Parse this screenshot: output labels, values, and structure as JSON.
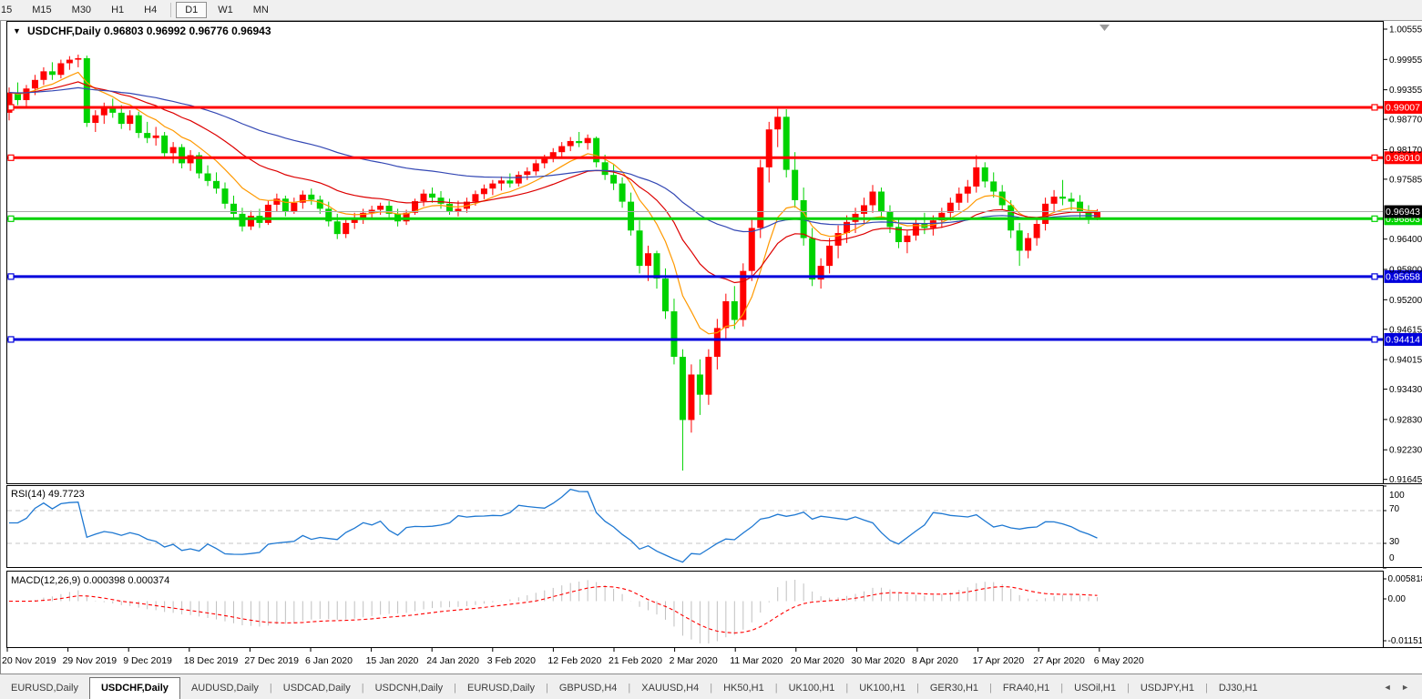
{
  "toolbar": {
    "timeframes": [
      "15",
      "M15",
      "M30",
      "H1",
      "H4",
      "D1",
      "W1",
      "MN"
    ],
    "active_timeframe": "D1",
    "separator_before": "D1"
  },
  "chart": {
    "symbol": "USDCHF,Daily",
    "ohlc": {
      "open": "0.96803",
      "high": "0.96992",
      "low": "0.96776",
      "close": "0.96943"
    },
    "title_display": "USDCHF,Daily  0.96803 0.96992 0.96776 0.96943"
  },
  "chart_data": {
    "type": "candlestick",
    "symbol": "USDCHF",
    "timeframe": "Daily",
    "bull_color": "#FF0000",
    "bear_color": "#00D300",
    "y_axis_ticks": [
      "1.00555",
      "0.99955",
      "0.99355",
      "0.98770",
      "0.98170",
      "0.97585",
      "0.96400",
      "0.95800",
      "0.95200",
      "0.94615",
      "0.94015",
      "0.93430",
      "0.92830",
      "0.92230",
      "0.91645"
    ],
    "x_axis_labels": [
      "20 Nov 2019",
      "29 Nov 2019",
      "9 Dec 2019",
      "18 Dec 2019",
      "27 Dec 2019",
      "6 Jan 2020",
      "15 Jan 2020",
      "24 Jan 2020",
      "3 Feb 2020",
      "12 Feb 2020",
      "21 Feb 2020",
      "2 Mar 2020",
      "11 Mar 2020",
      "20 Mar 2020",
      "30 Mar 2020",
      "8 Apr 2020",
      "17 Apr 2020",
      "27 Apr 2020",
      "6 May 2020"
    ],
    "horizontal_lines": [
      {
        "price": 0.99007,
        "label": "0.99007",
        "color": "#FF0000",
        "type": "resistance"
      },
      {
        "price": 0.9801,
        "label": "0.98010",
        "color": "#FF0000",
        "type": "resistance"
      },
      {
        "price": 0.96803,
        "label": "0.96803",
        "color": "#00D200",
        "type": "open-level"
      },
      {
        "price": 0.95658,
        "label": "0.95658",
        "color": "#0000DC",
        "type": "support"
      },
      {
        "price": 0.94414,
        "label": "0.94414",
        "color": "#0000DC",
        "type": "support"
      }
    ],
    "current_price_line": {
      "price": 0.96943,
      "label": "0.96943",
      "line_color": "#ABABAB",
      "badge_color": "#000000"
    },
    "moving_averages": [
      {
        "period": 9,
        "color": "#FF9900",
        "name": "fast"
      },
      {
        "period": 22,
        "color": "#DD0000",
        "name": "mid"
      },
      {
        "period": 55,
        "color": "#3448B4",
        "name": "slow"
      }
    ],
    "candles": [
      [
        0.989,
        0.994,
        0.9875,
        0.993
      ],
      [
        0.993,
        0.995,
        0.9905,
        0.9915
      ],
      [
        0.9915,
        0.9945,
        0.99,
        0.9938
      ],
      [
        0.9938,
        0.9965,
        0.9925,
        0.9955
      ],
      [
        0.9955,
        0.998,
        0.9945,
        0.9972
      ],
      [
        0.9972,
        0.999,
        0.9955,
        0.9965
      ],
      [
        0.9965,
        0.9995,
        0.9958,
        0.9988
      ],
      [
        0.9988,
        1.0002,
        0.9975,
        0.9995
      ],
      [
        0.9995,
        1.0005,
        0.998,
        0.9998
      ],
      [
        0.9998,
        1.0003,
        0.9862,
        0.987
      ],
      [
        0.987,
        0.9895,
        0.9852,
        0.9885
      ],
      [
        0.9885,
        0.991,
        0.9868,
        0.99
      ],
      [
        0.99,
        0.9918,
        0.988,
        0.989
      ],
      [
        0.989,
        0.9905,
        0.9858,
        0.9868
      ],
      [
        0.9868,
        0.9895,
        0.9855,
        0.9885
      ],
      [
        0.9885,
        0.9892,
        0.984,
        0.985
      ],
      [
        0.985,
        0.9872,
        0.983,
        0.984
      ],
      [
        0.984,
        0.9862,
        0.9825,
        0.9845
      ],
      [
        0.9845,
        0.9852,
        0.98,
        0.981
      ],
      [
        0.981,
        0.9832,
        0.979,
        0.9822
      ],
      [
        0.9822,
        0.9828,
        0.978,
        0.979
      ],
      [
        0.979,
        0.9816,
        0.9775,
        0.9806
      ],
      [
        0.9806,
        0.9812,
        0.976,
        0.977
      ],
      [
        0.977,
        0.9786,
        0.9745,
        0.9755
      ],
      [
        0.9755,
        0.9772,
        0.973,
        0.974
      ],
      [
        0.974,
        0.9752,
        0.97,
        0.971
      ],
      [
        0.971,
        0.9726,
        0.968,
        0.969
      ],
      [
        0.969,
        0.9702,
        0.9655,
        0.9665
      ],
      [
        0.9665,
        0.9696,
        0.9658,
        0.9686
      ],
      [
        0.9686,
        0.97,
        0.9662,
        0.9672
      ],
      [
        0.9672,
        0.9716,
        0.9668,
        0.9708
      ],
      [
        0.9708,
        0.973,
        0.9695,
        0.972
      ],
      [
        0.972,
        0.9726,
        0.9685,
        0.9695
      ],
      [
        0.9695,
        0.9722,
        0.969,
        0.9712
      ],
      [
        0.9712,
        0.9736,
        0.97,
        0.9728
      ],
      [
        0.9728,
        0.974,
        0.9708,
        0.9718
      ],
      [
        0.9718,
        0.9726,
        0.969,
        0.97
      ],
      [
        0.97,
        0.9714,
        0.9665,
        0.9675
      ],
      [
        0.9675,
        0.969,
        0.964,
        0.965
      ],
      [
        0.965,
        0.968,
        0.9642,
        0.9672
      ],
      [
        0.9672,
        0.9692,
        0.966,
        0.9682
      ],
      [
        0.9682,
        0.97,
        0.967,
        0.9692
      ],
      [
        0.9692,
        0.9706,
        0.968,
        0.9698
      ],
      [
        0.9698,
        0.9712,
        0.9688,
        0.9706
      ],
      [
        0.9706,
        0.9715,
        0.9682,
        0.969
      ],
      [
        0.969,
        0.97,
        0.9665,
        0.9675
      ],
      [
        0.9675,
        0.9698,
        0.9668,
        0.9692
      ],
      [
        0.9692,
        0.972,
        0.9688,
        0.9715
      ],
      [
        0.9715,
        0.9738,
        0.9705,
        0.973
      ],
      [
        0.973,
        0.9742,
        0.9712,
        0.9722
      ],
      [
        0.9722,
        0.9735,
        0.97,
        0.971
      ],
      [
        0.971,
        0.972,
        0.9688,
        0.9695
      ],
      [
        0.9695,
        0.9716,
        0.9685,
        0.97
      ],
      [
        0.97,
        0.9722,
        0.9692,
        0.9714
      ],
      [
        0.9714,
        0.9736,
        0.9706,
        0.9729
      ],
      [
        0.9729,
        0.9748,
        0.9719,
        0.974
      ],
      [
        0.974,
        0.9757,
        0.9727,
        0.975
      ],
      [
        0.975,
        0.9764,
        0.9736,
        0.9756
      ],
      [
        0.9756,
        0.977,
        0.9742,
        0.975
      ],
      [
        0.975,
        0.9774,
        0.9744,
        0.9767
      ],
      [
        0.9767,
        0.9782,
        0.9757,
        0.9774
      ],
      [
        0.9774,
        0.9797,
        0.9766,
        0.979
      ],
      [
        0.979,
        0.9807,
        0.978,
        0.98
      ],
      [
        0.98,
        0.982,
        0.9792,
        0.9812
      ],
      [
        0.9812,
        0.9832,
        0.9802,
        0.9824
      ],
      [
        0.9824,
        0.9842,
        0.9814,
        0.9834
      ],
      [
        0.9834,
        0.9852,
        0.9822,
        0.983
      ],
      [
        0.983,
        0.9847,
        0.9817,
        0.984
      ],
      [
        0.984,
        0.9843,
        0.9782,
        0.9792
      ],
      [
        0.9792,
        0.9807,
        0.9757,
        0.9767
      ],
      [
        0.9767,
        0.9787,
        0.9737,
        0.975
      ],
      [
        0.975,
        0.9762,
        0.9702,
        0.9714
      ],
      [
        0.9714,
        0.9732,
        0.9647,
        0.9657
      ],
      [
        0.9657,
        0.9677,
        0.9572,
        0.9587
      ],
      [
        0.9587,
        0.9627,
        0.9557,
        0.9612
      ],
      [
        0.9612,
        0.9617,
        0.9542,
        0.9562
      ],
      [
        0.9562,
        0.9582,
        0.9482,
        0.9497
      ],
      [
        0.9497,
        0.9522,
        0.9392,
        0.9407
      ],
      [
        0.9407,
        0.9422,
        0.9182,
        0.9282
      ],
      [
        0.9282,
        0.9392,
        0.9257,
        0.9372
      ],
      [
        0.9372,
        0.9402,
        0.9292,
        0.9332
      ],
      [
        0.9332,
        0.9422,
        0.9312,
        0.9407
      ],
      [
        0.9407,
        0.9482,
        0.9382,
        0.9464
      ],
      [
        0.9464,
        0.9532,
        0.9442,
        0.9517
      ],
      [
        0.9517,
        0.9547,
        0.9462,
        0.948
      ],
      [
        0.948,
        0.9592,
        0.9467,
        0.9577
      ],
      [
        0.9577,
        0.9682,
        0.9557,
        0.9662
      ],
      [
        0.9662,
        0.9797,
        0.9642,
        0.9782
      ],
      [
        0.9782,
        0.9872,
        0.9752,
        0.9857
      ],
      [
        0.9857,
        0.9901,
        0.9822,
        0.9882
      ],
      [
        0.9882,
        0.9897,
        0.9762,
        0.9777
      ],
      [
        0.9777,
        0.9812,
        0.9702,
        0.9717
      ],
      [
        0.9717,
        0.9742,
        0.9627,
        0.9642
      ],
      [
        0.9642,
        0.9662,
        0.9547,
        0.956
      ],
      [
        0.956,
        0.9602,
        0.9542,
        0.9587
      ],
      [
        0.9587,
        0.9642,
        0.9572,
        0.9627
      ],
      [
        0.9627,
        0.9667,
        0.9602,
        0.9652
      ],
      [
        0.9652,
        0.9687,
        0.9632,
        0.9674
      ],
      [
        0.9674,
        0.9702,
        0.9652,
        0.969
      ],
      [
        0.969,
        0.9722,
        0.9672,
        0.9707
      ],
      [
        0.9707,
        0.9747,
        0.9692,
        0.9734
      ],
      [
        0.9734,
        0.9742,
        0.9682,
        0.9694
      ],
      [
        0.9694,
        0.9707,
        0.9652,
        0.9664
      ],
      [
        0.9664,
        0.9682,
        0.9622,
        0.9634
      ],
      [
        0.9634,
        0.9657,
        0.9612,
        0.9647
      ],
      [
        0.9647,
        0.9682,
        0.9637,
        0.967
      ],
      [
        0.967,
        0.9692,
        0.965,
        0.9662
      ],
      [
        0.9662,
        0.9687,
        0.9647,
        0.9677
      ],
      [
        0.9677,
        0.9702,
        0.9662,
        0.9692
      ],
      [
        0.9692,
        0.9722,
        0.9677,
        0.9712
      ],
      [
        0.9712,
        0.9742,
        0.9697,
        0.973
      ],
      [
        0.973,
        0.9757,
        0.9712,
        0.9744
      ],
      [
        0.9744,
        0.9806,
        0.9732,
        0.9782
      ],
      [
        0.9782,
        0.9792,
        0.9742,
        0.9754
      ],
      [
        0.9754,
        0.9772,
        0.9722,
        0.9734
      ],
      [
        0.9734,
        0.9747,
        0.9697,
        0.9707
      ],
      [
        0.9707,
        0.9717,
        0.9642,
        0.9657
      ],
      [
        0.9657,
        0.9672,
        0.9587,
        0.9617
      ],
      [
        0.9617,
        0.9652,
        0.9602,
        0.9642
      ],
      [
        0.9642,
        0.9682,
        0.9627,
        0.967
      ],
      [
        0.967,
        0.9722,
        0.9657,
        0.971
      ],
      [
        0.971,
        0.9737,
        0.9692,
        0.9724
      ],
      [
        0.9724,
        0.9757,
        0.9707,
        0.972
      ],
      [
        0.972,
        0.9732,
        0.9697,
        0.9714
      ],
      [
        0.9714,
        0.9727,
        0.9682,
        0.9694
      ],
      [
        0.9694,
        0.9707,
        0.967,
        0.9682
      ],
      [
        0.96803,
        0.96992,
        0.96776,
        0.96943
      ]
    ],
    "rsi": {
      "display": "RSI(14) 49.7723",
      "period": 14,
      "value": 49.7723,
      "levels": [
        70,
        30
      ],
      "axis_labels": [
        "100",
        "70",
        "30",
        "0"
      ],
      "line_color": "#1E78D2"
    },
    "macd": {
      "display": "MACD(12,26,9) 0.000398 0.000374",
      "fast": 12,
      "slow": 26,
      "signal": 9,
      "main_value": 0.000398,
      "signal_value": 0.000374,
      "axis_labels": [
        "0.005818",
        "0.00",
        "-0.011514"
      ],
      "axis_max": 0.005818,
      "axis_min": -0.011514,
      "histogram_color": "#C0C0C0",
      "signal_color": "#FF0000"
    }
  },
  "tabs": {
    "items": [
      "EURUSD,Daily",
      "USDCHF,Daily",
      "AUDUSD,Daily",
      "USDCAD,Daily",
      "USDCNH,Daily",
      "EURUSD,Daily",
      "GBPUSD,H4",
      "XAUUSD,H4",
      "HK50,H1",
      "UK100,H1",
      "UK100,H1",
      "GER30,H1",
      "FRA40,H1",
      "USOil,H1",
      "USDJPY,H1",
      "DJ30,H1"
    ],
    "active_index": 1,
    "scroll_arrows": "◄ ►"
  }
}
